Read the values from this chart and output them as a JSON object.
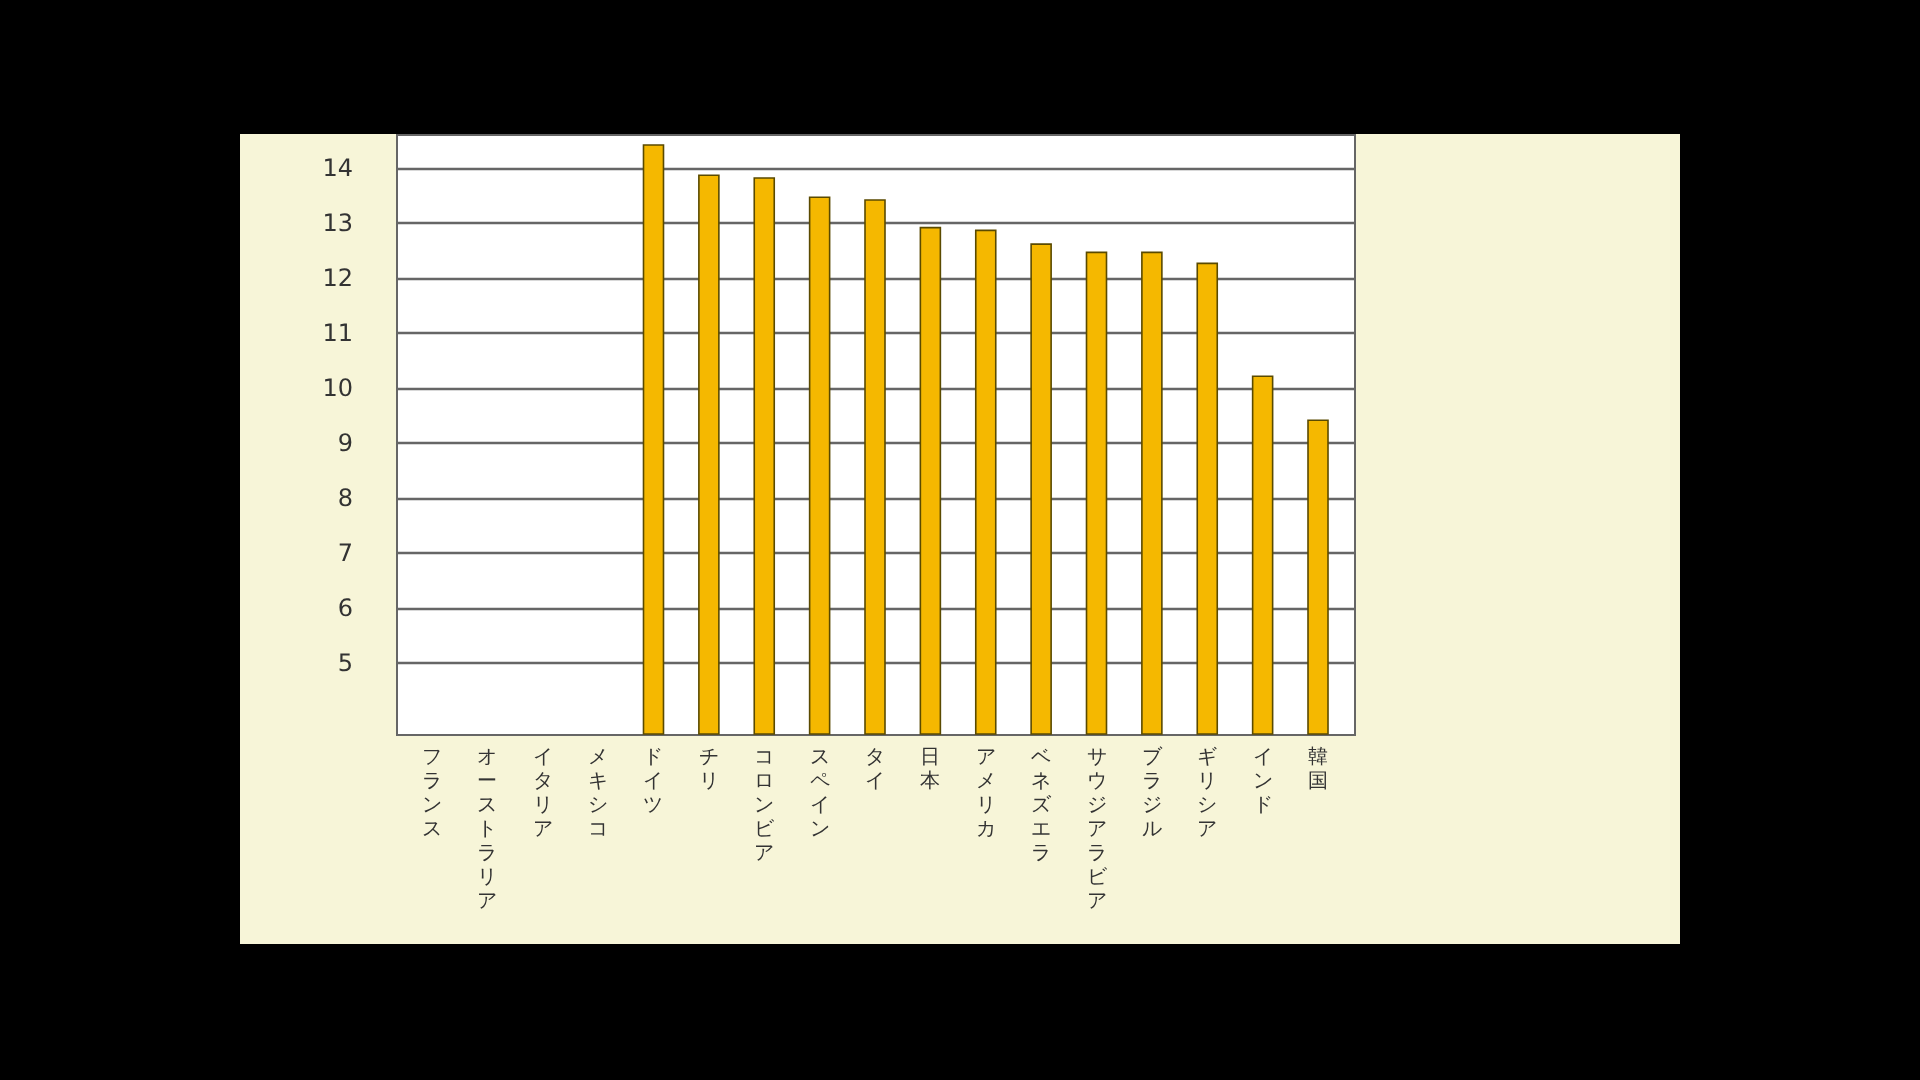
{
  "chart_data": {
    "type": "bar",
    "categories": [
      "フランス",
      "オーストラリア",
      "イタリア",
      "メキシコ",
      "ドイツ",
      "チリ",
      "コロンビア",
      "スペイン",
      "タイ",
      "日本",
      "アメリカ",
      "ベネズエラ",
      "サウジアラビア",
      "ブラジル",
      "ギリシア",
      "インド",
      "韓国"
    ],
    "values": [
      null,
      null,
      null,
      null,
      14.4,
      13.85,
      13.8,
      13.45,
      13.4,
      12.9,
      12.85,
      12.6,
      12.45,
      12.45,
      12.25,
      10.2,
      9.4
    ],
    "color": "#f5b800",
    "ylim": [
      3.7,
      14.6
    ],
    "yticks": [
      5,
      6,
      7,
      8,
      9,
      10,
      11,
      12,
      13,
      14
    ],
    "grid": "y"
  }
}
